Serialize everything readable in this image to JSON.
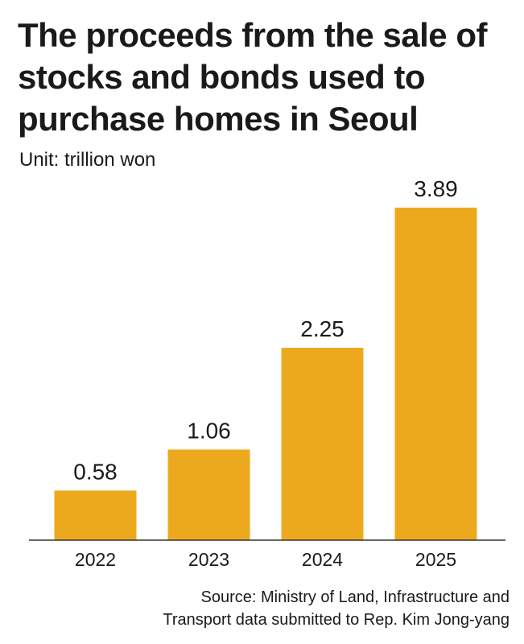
{
  "header": {
    "title_lines": [
      "The proceeds from the sale of",
      "stocks and bonds used to",
      "purchase homes in Seoul"
    ],
    "unit": "Unit: trillion won"
  },
  "chart_data": {
    "type": "bar",
    "categories": [
      "2022",
      "2023",
      "2024",
      "2025"
    ],
    "values": [
      0.58,
      1.06,
      2.25,
      3.89
    ],
    "data_labels": [
      "0.58",
      "1.06",
      "2.25",
      "3.89"
    ],
    "ylim": [
      0,
      4.2
    ],
    "grid": false,
    "bar_color": "#EDA91E",
    "axis_color": "#333333"
  },
  "footer": {
    "source_lines": [
      "Source: Ministry of Land, Infrastructure and",
      "Transport data submitted to Rep. Kim Jong-yang"
    ]
  }
}
